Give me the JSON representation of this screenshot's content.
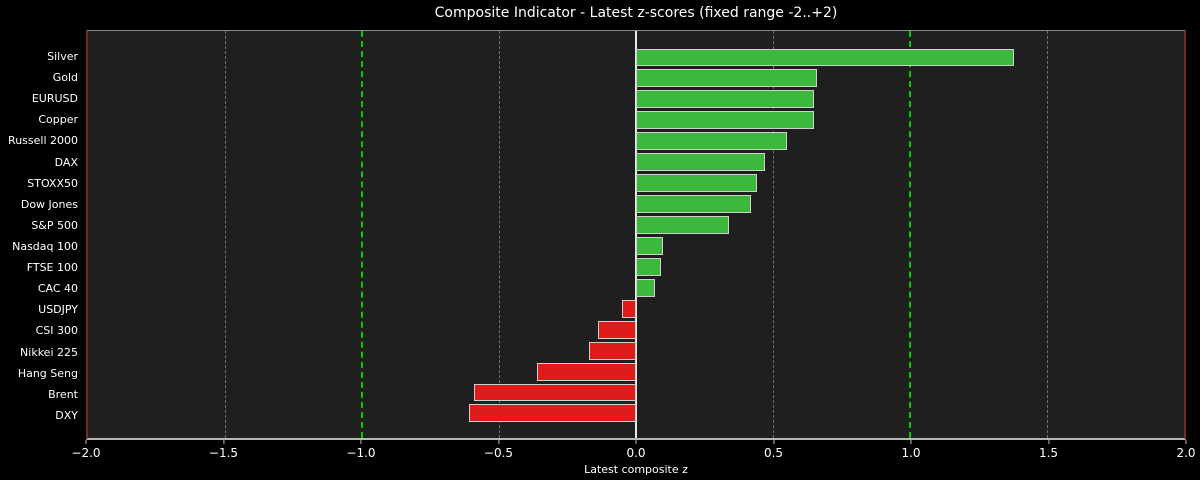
{
  "chart_data": {
    "type": "bar",
    "orientation": "horizontal",
    "title": "Composite Indicator - Latest z-scores (fixed range -2..+2)",
    "xlabel": "Latest composite z",
    "categories": [
      "Silver",
      "Gold",
      "EURUSD",
      "Copper",
      "Russell 2000",
      "DAX",
      "STOXX50",
      "Dow Jones",
      "S&P 500",
      "Nasdaq 100",
      "FTSE 100",
      "CAC 40",
      "USDJPY",
      "CSI 300",
      "Nikkei 225",
      "Hang Seng",
      "Brent",
      "DXY"
    ],
    "values": [
      1.38,
      0.66,
      0.65,
      0.65,
      0.55,
      0.47,
      0.44,
      0.42,
      0.34,
      0.1,
      0.09,
      0.07,
      -0.05,
      -0.14,
      -0.17,
      -0.36,
      -0.59,
      -0.61
    ],
    "xlim": [
      -2.0,
      2.0
    ],
    "x_ticks": [
      {
        "value": -2.0,
        "label": "−2.0"
      },
      {
        "value": -1.5,
        "label": "−1.5"
      },
      {
        "value": -1.0,
        "label": "−1.0"
      },
      {
        "value": -0.5,
        "label": "−0.5"
      },
      {
        "value": 0.0,
        "label": "0.0"
      },
      {
        "value": 0.5,
        "label": "0.5"
      },
      {
        "value": 1.0,
        "label": "1.0"
      },
      {
        "value": 1.5,
        "label": "1.5"
      },
      {
        "value": 2.0,
        "label": "2.0"
      }
    ],
    "gridlines": [
      {
        "value": -1.5,
        "color": "#6e6e6e",
        "style": "dashed",
        "width": 1
      },
      {
        "value": -1.0,
        "color": "#00cc00",
        "style": "dashed",
        "width": 2
      },
      {
        "value": -0.5,
        "color": "#6e6e6e",
        "style": "dashed",
        "width": 1
      },
      {
        "value": 0.0,
        "color": "#e8e8e8",
        "style": "solid",
        "width": 2
      },
      {
        "value": 0.5,
        "color": "#6e6e6e",
        "style": "dashed",
        "width": 1
      },
      {
        "value": 1.0,
        "color": "#00cc00",
        "style": "dashed",
        "width": 2
      },
      {
        "value": 1.5,
        "color": "#6e6e6e",
        "style": "dashed",
        "width": 1
      }
    ],
    "legend": null,
    "grid": true,
    "colors": {
      "positive_bar": "#3cb93c",
      "negative_bar": "#e01b1b",
      "bar_edge": "#cfcfcf",
      "plot_background": "#1f1f1f",
      "figure_background": "#000000",
      "side_spine": "#6f2b2b",
      "threshold_line": "#00cc00",
      "zero_line": "#e8e8e8",
      "grid_gray": "#6e6e6e",
      "text": "#ffffff"
    }
  }
}
